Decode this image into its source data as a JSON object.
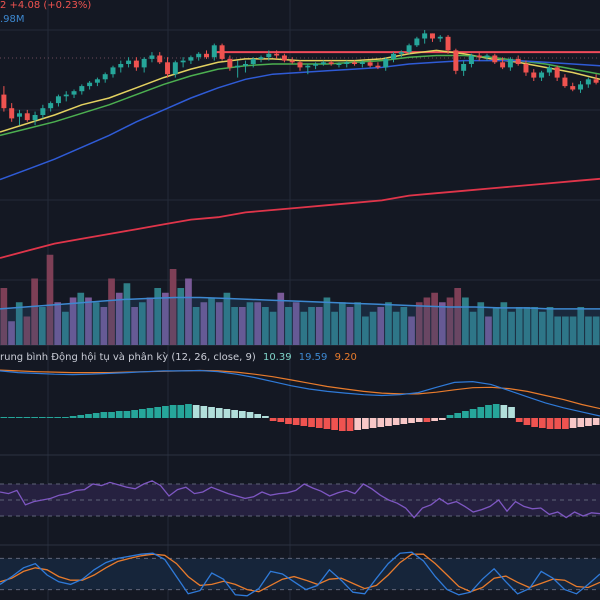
{
  "colors": {
    "background": "#141823",
    "grid": "#242a38",
    "separator": "#2c3242",
    "up": "#26a69a",
    "down": "#ef5350",
    "ma_fast": "#e3d160",
    "ma_mid": "#4caf50",
    "ma_slow": "#2f5bd6",
    "ma_long": "#e0354a",
    "resistance": "#f04a5a",
    "vol_up": "#2f7f87",
    "vol_down": "#7e3f56",
    "vol_purple": "#7a5a98",
    "vol_ma": "#3d88d0",
    "vol_ma_fill": "#2d5a8a",
    "macd_line": "#2f7ad8",
    "signal_line": "#e87b2c",
    "hist_up_strong": "#26a69a",
    "hist_up_weak": "#b2dfdb",
    "hist_down_strong": "#ef5350",
    "hist_down_weak": "#f8c7c7",
    "rsi_line": "#7e57c2",
    "rsi_band": "#262140",
    "stoch_k": "#2f7ad8",
    "stoch_d": "#e87b2c",
    "stoch_band": "#16253a",
    "header_text": "#c9ccd6"
  },
  "header": {
    "price_change_fragment": "2 +4.08 (+0.23%)",
    "volume_fragment": ".98M"
  },
  "macd_header": {
    "label": "rung bình Động hội tụ và phân kỳ (12, 26, close, 9)",
    "value_hist": "10.39",
    "value_macd": "19.59",
    "value_signal": "9.20"
  },
  "chart_data": [
    {
      "type": "candlestick",
      "name": "price",
      "y_range": [
        0,
        100
      ],
      "candles": [
        {
          "o": 62,
          "h": 67,
          "l": 52,
          "c": 54
        },
        {
          "o": 54,
          "h": 57,
          "l": 46,
          "c": 48
        },
        {
          "o": 49,
          "h": 53,
          "l": 44,
          "c": 51
        },
        {
          "o": 51,
          "h": 53,
          "l": 46,
          "c": 47
        },
        {
          "o": 47,
          "h": 52,
          "l": 44,
          "c": 50
        },
        {
          "o": 50,
          "h": 56,
          "l": 48,
          "c": 54
        },
        {
          "o": 54,
          "h": 58,
          "l": 52,
          "c": 57
        },
        {
          "o": 57,
          "h": 62,
          "l": 55,
          "c": 61
        },
        {
          "o": 61,
          "h": 64,
          "l": 58,
          "c": 62
        },
        {
          "o": 62,
          "h": 65,
          "l": 60,
          "c": 64
        },
        {
          "o": 64,
          "h": 68,
          "l": 62,
          "c": 67
        },
        {
          "o": 67,
          "h": 70,
          "l": 65,
          "c": 69
        },
        {
          "o": 69,
          "h": 72,
          "l": 67,
          "c": 71
        },
        {
          "o": 71,
          "h": 75,
          "l": 69,
          "c": 74
        },
        {
          "o": 74,
          "h": 79,
          "l": 72,
          "c": 78
        },
        {
          "o": 78,
          "h": 82,
          "l": 75,
          "c": 80
        },
        {
          "o": 80,
          "h": 84,
          "l": 78,
          "c": 82
        },
        {
          "o": 82,
          "h": 84,
          "l": 76,
          "c": 78
        },
        {
          "o": 78,
          "h": 84,
          "l": 75,
          "c": 83
        },
        {
          "o": 83,
          "h": 87,
          "l": 81,
          "c": 85
        },
        {
          "o": 85,
          "h": 87,
          "l": 80,
          "c": 81
        },
        {
          "o": 81,
          "h": 84,
          "l": 72,
          "c": 74
        },
        {
          "o": 74,
          "h": 82,
          "l": 72,
          "c": 81
        },
        {
          "o": 81,
          "h": 84,
          "l": 78,
          "c": 82
        },
        {
          "o": 82,
          "h": 85,
          "l": 80,
          "c": 84
        },
        {
          "o": 84,
          "h": 87,
          "l": 82,
          "c": 86
        },
        {
          "o": 86,
          "h": 88,
          "l": 83,
          "c": 84
        },
        {
          "o": 84,
          "h": 92,
          "l": 82,
          "c": 91
        },
        {
          "o": 91,
          "h": 92,
          "l": 82,
          "c": 83
        },
        {
          "o": 83,
          "h": 85,
          "l": 76,
          "c": 78
        },
        {
          "o": 78,
          "h": 82,
          "l": 72,
          "c": 79
        },
        {
          "o": 79,
          "h": 82,
          "l": 75,
          "c": 80
        },
        {
          "o": 80,
          "h": 84,
          "l": 78,
          "c": 83
        },
        {
          "o": 83,
          "h": 85,
          "l": 81,
          "c": 84
        },
        {
          "o": 84,
          "h": 88,
          "l": 82,
          "c": 86
        },
        {
          "o": 86,
          "h": 88,
          "l": 83,
          "c": 85
        },
        {
          "o": 85,
          "h": 86,
          "l": 81,
          "c": 82
        },
        {
          "o": 82,
          "h": 84,
          "l": 80,
          "c": 81
        },
        {
          "o": 81,
          "h": 82,
          "l": 76,
          "c": 78
        },
        {
          "o": 78,
          "h": 80,
          "l": 74,
          "c": 79
        },
        {
          "o": 79,
          "h": 81,
          "l": 77,
          "c": 80
        },
        {
          "o": 80,
          "h": 82,
          "l": 79,
          "c": 81
        },
        {
          "o": 81,
          "h": 82,
          "l": 79,
          "c": 80
        },
        {
          "o": 80,
          "h": 81,
          "l": 78,
          "c": 80
        },
        {
          "o": 80,
          "h": 82,
          "l": 78,
          "c": 81
        },
        {
          "o": 81,
          "h": 82,
          "l": 79,
          "c": 80
        },
        {
          "o": 80,
          "h": 82,
          "l": 78,
          "c": 81
        },
        {
          "o": 81,
          "h": 82,
          "l": 78,
          "c": 79
        },
        {
          "o": 79,
          "h": 81,
          "l": 77,
          "c": 78
        },
        {
          "o": 78,
          "h": 84,
          "l": 76,
          "c": 83
        },
        {
          "o": 83,
          "h": 87,
          "l": 81,
          "c": 86
        },
        {
          "o": 86,
          "h": 88,
          "l": 84,
          "c": 87
        },
        {
          "o": 87,
          "h": 92,
          "l": 86,
          "c": 91
        },
        {
          "o": 91,
          "h": 96,
          "l": 90,
          "c": 95
        },
        {
          "o": 95,
          "h": 100,
          "l": 92,
          "c": 98
        },
        {
          "o": 98,
          "h": 98,
          "l": 93,
          "c": 95
        },
        {
          "o": 95,
          "h": 97,
          "l": 93,
          "c": 96
        },
        {
          "o": 96,
          "h": 97,
          "l": 86,
          "c": 88
        },
        {
          "o": 88,
          "h": 89,
          "l": 74,
          "c": 76
        },
        {
          "o": 76,
          "h": 82,
          "l": 73,
          "c": 80
        },
        {
          "o": 80,
          "h": 86,
          "l": 78,
          "c": 85
        },
        {
          "o": 85,
          "h": 87,
          "l": 82,
          "c": 84
        },
        {
          "o": 84,
          "h": 86,
          "l": 82,
          "c": 85
        },
        {
          "o": 85,
          "h": 86,
          "l": 80,
          "c": 81
        },
        {
          "o": 81,
          "h": 84,
          "l": 77,
          "c": 78
        },
        {
          "o": 78,
          "h": 84,
          "l": 76,
          "c": 83
        },
        {
          "o": 83,
          "h": 85,
          "l": 79,
          "c": 80
        },
        {
          "o": 80,
          "h": 82,
          "l": 73,
          "c": 75
        },
        {
          "o": 75,
          "h": 77,
          "l": 70,
          "c": 72
        },
        {
          "o": 72,
          "h": 76,
          "l": 70,
          "c": 75
        },
        {
          "o": 75,
          "h": 79,
          "l": 73,
          "c": 78
        },
        {
          "o": 78,
          "h": 79,
          "l": 70,
          "c": 72
        },
        {
          "o": 72,
          "h": 74,
          "l": 66,
          "c": 67
        },
        {
          "o": 67,
          "h": 69,
          "l": 64,
          "c": 65
        },
        {
          "o": 65,
          "h": 70,
          "l": 63,
          "c": 68
        },
        {
          "o": 68,
          "h": 72,
          "l": 66,
          "c": 71
        },
        {
          "o": 71,
          "h": 74,
          "l": 68,
          "c": 69
        }
      ],
      "resistance_level": 87,
      "moving_averages": [
        {
          "name": "MA-fast",
          "color_key": "ma_fast",
          "values": [
            40,
            45,
            50,
            56,
            60,
            66,
            72,
            77,
            81,
            83,
            83,
            82,
            82,
            82,
            83,
            86,
            88,
            86,
            83,
            81,
            78,
            75,
            71
          ]
        },
        {
          "name": "MA-mid",
          "color_key": "ma_mid",
          "values": [
            38,
            42,
            46,
            51,
            56,
            62,
            68,
            73,
            77,
            79,
            80,
            80,
            80,
            81,
            82,
            84,
            85,
            85,
            84,
            82,
            80,
            77,
            74
          ]
        },
        {
          "name": "MA-slow",
          "color_key": "ma_slow",
          "values": [
            12,
            18,
            24,
            31,
            38,
            46,
            53,
            60,
            66,
            71,
            74,
            75,
            76,
            77,
            78,
            80,
            81,
            82,
            82,
            82,
            81,
            80,
            79
          ]
        },
        {
          "name": "MA-long",
          "color_key": "ma_long",
          "values": [
            5,
            8,
            11,
            13,
            15,
            17,
            19,
            21,
            22,
            24,
            25,
            26,
            27,
            28,
            29,
            31,
            32,
            33,
            34,
            35,
            36,
            37,
            38
          ]
        }
      ]
    },
    {
      "type": "bar",
      "name": "volume",
      "y_range": [
        0,
        100
      ],
      "values": [
        60,
        25,
        45,
        30,
        70,
        40,
        95,
        45,
        35,
        50,
        55,
        50,
        45,
        40,
        70,
        55,
        65,
        40,
        45,
        50,
        60,
        55,
        80,
        60,
        70,
        40,
        45,
        50,
        45,
        55,
        40,
        40,
        45,
        45,
        40,
        35,
        55,
        40,
        45,
        35,
        40,
        40,
        50,
        35,
        45,
        40,
        45,
        30,
        35,
        40,
        45,
        35,
        40,
        30,
        45,
        50,
        55,
        45,
        50,
        60,
        50,
        35,
        45,
        30,
        40,
        45,
        35,
        40,
        40,
        40,
        35,
        40,
        30,
        30,
        30,
        40,
        30,
        30
      ],
      "colors": [
        "d",
        "p",
        "u",
        "d",
        "d",
        "u",
        "d",
        "p",
        "u",
        "p",
        "u",
        "p",
        "u",
        "p",
        "d",
        "p",
        "u",
        "p",
        "u",
        "p",
        "u",
        "p",
        "d",
        "u",
        "p",
        "u",
        "p",
        "u",
        "p",
        "u",
        "u",
        "p",
        "u",
        "p",
        "u",
        "u",
        "p",
        "u",
        "p",
        "u",
        "u",
        "p",
        "u",
        "u",
        "u",
        "p",
        "u",
        "u",
        "u",
        "p",
        "u",
        "u",
        "u",
        "p",
        "d",
        "d",
        "d",
        "p",
        "d",
        "d",
        "u",
        "u",
        "u",
        "p",
        "u",
        "u",
        "u",
        "u",
        "u",
        "u",
        "u",
        "u",
        "u",
        "u",
        "u",
        "u",
        "u",
        "u"
      ],
      "volume_ma": [
        38,
        40,
        42,
        44,
        46,
        48,
        49,
        50,
        50,
        49,
        48,
        47,
        46,
        45,
        44,
        43,
        42,
        41,
        40,
        40,
        39,
        39,
        38,
        38,
        38
      ]
    },
    {
      "type": "line",
      "name": "MACD",
      "y_range": [
        -100,
        100
      ],
      "macd": [
        88,
        84,
        82,
        80,
        79,
        80,
        82,
        84,
        86,
        88,
        88,
        89,
        86,
        80,
        72,
        62,
        52,
        44,
        38,
        34,
        30,
        28,
        30,
        35,
        48,
        60,
        62,
        55,
        40,
        25,
        10,
        -2,
        -12,
        -22
      ],
      "signal": [
        90,
        88,
        86,
        85,
        84,
        84,
        84,
        85,
        86,
        87,
        88,
        89,
        88,
        85,
        80,
        74,
        66,
        58,
        50,
        44,
        38,
        34,
        32,
        32,
        36,
        42,
        47,
        48,
        45,
        38,
        28,
        18,
        6,
        -4
      ],
      "histogram": [
        0,
        0,
        0,
        0,
        0,
        0,
        0,
        0,
        0,
        1,
        2,
        3,
        4,
        5,
        5,
        6,
        6,
        7,
        8,
        9,
        10,
        11,
        12,
        12,
        13,
        12,
        11,
        10,
        9,
        8,
        7,
        6,
        5,
        3,
        1,
        -2,
        -3,
        -5,
        -6,
        -7,
        -8,
        -9,
        -10,
        -11,
        -12,
        -12,
        -11,
        -10,
        -9,
        -8,
        -7,
        -6,
        -5,
        -4,
        -3,
        -3,
        -2,
        -1,
        2,
        4,
        6,
        8,
        10,
        12,
        13,
        12,
        10,
        -3,
        -6,
        -8,
        -9,
        -10,
        -10,
        -10,
        -9,
        -8,
        -7,
        -6
      ]
    },
    {
      "type": "line",
      "name": "RSI",
      "y_range": [
        0,
        100
      ],
      "band": [
        30,
        70
      ],
      "values": [
        60,
        58,
        62,
        44,
        48,
        50,
        52,
        56,
        58,
        62,
        63,
        70,
        68,
        72,
        69,
        66,
        64,
        70,
        74,
        68,
        55,
        63,
        66,
        58,
        60,
        66,
        62,
        58,
        55,
        52,
        54,
        60,
        56,
        58,
        59,
        62,
        70,
        65,
        61,
        55,
        59,
        62,
        58,
        70,
        64,
        56,
        50,
        46,
        40,
        28,
        40,
        44,
        52,
        45,
        48,
        42,
        35,
        38,
        42,
        50,
        36,
        48,
        42,
        39,
        40,
        32,
        35,
        28,
        35,
        30,
        34,
        33
      ]
    },
    {
      "type": "line",
      "name": "Stochastic",
      "y_range": [
        0,
        100
      ],
      "band": [
        20,
        80
      ],
      "k": [
        30,
        45,
        62,
        70,
        48,
        35,
        30,
        40,
        58,
        72,
        80,
        84,
        88,
        90,
        78,
        45,
        12,
        18,
        52,
        40,
        10,
        8,
        22,
        55,
        50,
        35,
        20,
        28,
        58,
        38,
        15,
        12,
        42,
        70,
        90,
        92,
        75,
        45,
        20,
        10,
        15,
        40,
        60,
        35,
        12,
        22,
        55,
        42,
        20,
        12,
        30,
        50
      ],
      "d": [
        35,
        42,
        55,
        62,
        58,
        45,
        38,
        38,
        48,
        62,
        74,
        80,
        85,
        88,
        86,
        70,
        45,
        28,
        30,
        36,
        30,
        20,
        16,
        28,
        40,
        45,
        38,
        30,
        40,
        42,
        32,
        22,
        28,
        48,
        72,
        88,
        88,
        70,
        48,
        26,
        16,
        24,
        42,
        46,
        34,
        24,
        32,
        40,
        38,
        26,
        24,
        34
      ]
    }
  ]
}
